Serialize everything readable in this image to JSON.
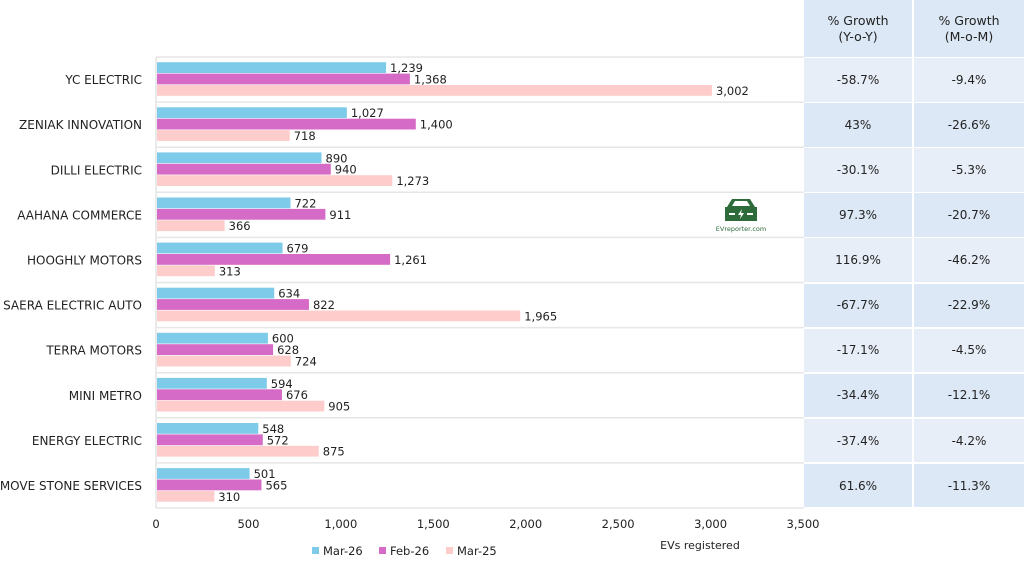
{
  "chart_data": {
    "type": "bar",
    "orientation": "horizontal",
    "categories": [
      "YC ELECTRIC",
      "ZENIAK INNOVATION",
      "DILLI ELECTRIC",
      "AAHANA COMMERCE",
      "HOOGHLY MOTORS",
      "SAERA ELECTRIC AUTO",
      "TERRA MOTORS",
      "MINI METRO",
      "ENERGY ELECTRIC",
      "MOVE STONE SERVICES"
    ],
    "series": [
      {
        "name": "Mar-26",
        "color": "#7ecae9",
        "values": [
          1239,
          1027,
          890,
          722,
          679,
          634,
          600,
          594,
          548,
          501
        ],
        "labels": [
          "1,239",
          "1,027",
          "890",
          "722",
          "679",
          "634",
          "600",
          "594",
          "548",
          "501"
        ]
      },
      {
        "name": "Feb-26",
        "color": "#d66ac7",
        "values": [
          1368,
          1400,
          940,
          911,
          1261,
          822,
          628,
          676,
          572,
          565
        ],
        "labels": [
          "1,368",
          "1,400",
          "940",
          "911",
          "1,261",
          "822",
          "628",
          "676",
          "572",
          "565"
        ]
      },
      {
        "name": "Mar-25",
        "color": "#ffcccc",
        "values": [
          3002,
          718,
          1273,
          366,
          313,
          1965,
          724,
          905,
          875,
          310
        ],
        "labels": [
          "3,002",
          "718",
          "1,273",
          "366",
          "313",
          "1,965",
          "724",
          "905",
          "875",
          "310"
        ]
      }
    ],
    "xlabel": "EVs registered",
    "ylabel": "",
    "xlim": [
      0,
      3500
    ],
    "xticks": [
      0,
      500,
      1000,
      1500,
      2000,
      2500,
      3000,
      3500
    ],
    "xtick_labels": [
      "0",
      "500",
      "1,000",
      "1,500",
      "2,000",
      "2,500",
      "3,000",
      "3,500"
    ],
    "legend_position": "bottom",
    "grid": false
  },
  "growth_table": {
    "headers": [
      {
        "line1": "% Growth",
        "line2": "(Y-o-Y)"
      },
      {
        "line1": "% Growth",
        "line2": "(M-o-M)"
      }
    ],
    "rows": [
      {
        "yoy": "-58.7%",
        "mom": "-9.4%"
      },
      {
        "yoy": "43%",
        "mom": "-26.6%"
      },
      {
        "yoy": "-30.1%",
        "mom": "-5.3%"
      },
      {
        "yoy": "97.3%",
        "mom": "-20.7%"
      },
      {
        "yoy": "116.9%",
        "mom": "-46.2%"
      },
      {
        "yoy": "-67.7%",
        "mom": "-22.9%"
      },
      {
        "yoy": "-17.1%",
        "mom": "-4.5%"
      },
      {
        "yoy": "-34.4%",
        "mom": "-12.1%"
      },
      {
        "yoy": "-37.4%",
        "mom": "-4.2%"
      },
      {
        "yoy": "61.6%",
        "mom": "-11.3%"
      }
    ],
    "colors": {
      "header": "#dce8f5",
      "row_a": "#e8eef8",
      "row_b": "#dce8f5"
    }
  },
  "watermark": {
    "text": "EVreporter.com",
    "color": "#2e6b3a"
  }
}
